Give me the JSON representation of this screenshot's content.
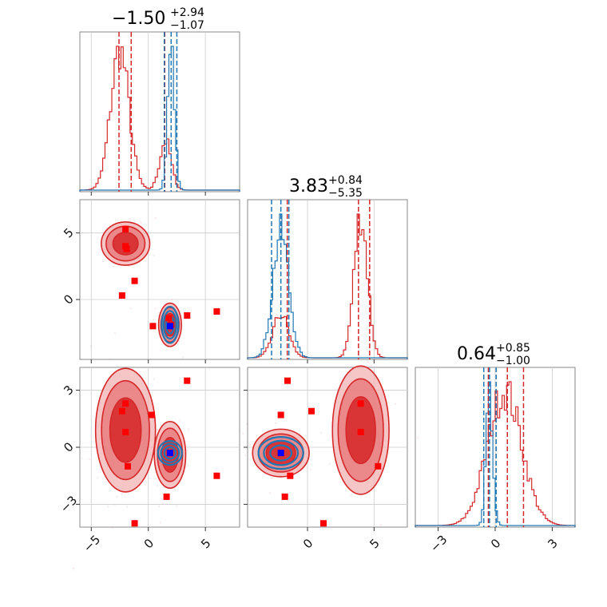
{
  "figure": {
    "description_type": "corner plot",
    "colors": {
      "red": "#d62728",
      "blue": "#1f77b4",
      "red_fill_light": "#f4b6b6",
      "red_fill_mid": "#e8787a",
      "red_fill_dark": "#d62728",
      "grid": "#cccccc",
      "marker_red": "#ff0000",
      "marker_blue": "#0000ff"
    }
  },
  "chart_data": [
    {
      "type": "histogram",
      "panel": "p0-marginal",
      "title_value": "−1.50",
      "title_plus": "+2.94",
      "title_minus": "−1.07",
      "xlim": [
        -6,
        8
      ],
      "xticks": [
        -5,
        0,
        5
      ],
      "series": [
        {
          "color": "red",
          "centers": [
            -2.5,
            1.5
          ],
          "widths": [
            0.8,
            0.5
          ],
          "weights": [
            1.0,
            0.35
          ]
        },
        {
          "color": "blue",
          "centers": [
            2.0
          ],
          "widths": [
            0.3
          ],
          "weights": [
            1.0
          ]
        }
      ],
      "red_quantiles": [
        -2.57,
        -1.5,
        1.44
      ],
      "blue_quantiles": [
        1.4,
        2.0,
        2.5
      ]
    },
    {
      "type": "histogram",
      "panel": "p1-marginal",
      "title_value": "3.83",
      "title_plus": "+0.84",
      "title_minus": "−5.35",
      "xlim": [
        -4.5,
        7.5
      ],
      "series": [
        {
          "color": "red",
          "centers": [
            -2.0,
            4.0
          ],
          "widths": [
            0.6,
            0.5
          ],
          "weights": [
            0.3,
            1.0
          ]
        },
        {
          "color": "blue",
          "centers": [
            -2.0
          ],
          "widths": [
            0.6
          ],
          "weights": [
            1.0
          ]
        }
      ],
      "red_quantiles": [
        -1.52,
        3.83,
        4.67
      ],
      "blue_quantiles": [
        -2.7,
        -2.0,
        -1.4
      ]
    },
    {
      "type": "histogram",
      "panel": "p2-marginal",
      "title_value": "0.64",
      "title_plus": "+0.85",
      "title_minus": "−1.00",
      "xlim": [
        -4.2,
        4.2
      ],
      "xticks": [
        -3,
        0,
        3
      ],
      "series": [
        {
          "color": "red",
          "centers": [
            0.5
          ],
          "widths": [
            0.9
          ],
          "weights": [
            1.0
          ]
        },
        {
          "color": "blue",
          "centers": [
            -0.3
          ],
          "widths": [
            0.18
          ],
          "weights": [
            1.0
          ]
        }
      ],
      "red_quantiles": [
        -0.36,
        0.64,
        1.49
      ],
      "blue_quantiles": [
        -0.6,
        -0.3,
        0.05
      ]
    },
    {
      "type": "scatter-contour",
      "panel": "p1-vs-p0",
      "xlim": [
        -6,
        8
      ],
      "ylim": [
        -4.5,
        7.5
      ],
      "yticks": [
        0,
        5
      ],
      "red_blobs": [
        {
          "x": -2.0,
          "y": 4.2,
          "sx": 1.7,
          "sy": 1.3
        },
        {
          "x": 1.9,
          "y": -1.9,
          "sx": 0.8,
          "sy": 1.3
        }
      ],
      "blue_blobs": [
        {
          "x": 1.9,
          "y": -1.9,
          "sx": 0.7,
          "sy": 1.3
        }
      ],
      "red_points": [
        [
          -2.0,
          5.3
        ],
        [
          -2.0,
          4.0
        ],
        [
          -1.9,
          3.8
        ],
        [
          -1.2,
          1.4
        ],
        [
          -2.3,
          0.3
        ],
        [
          0.4,
          -2.0
        ],
        [
          1.8,
          -1.4
        ],
        [
          2.0,
          -1.9
        ],
        [
          3.4,
          -1.2
        ],
        [
          6.0,
          -0.9
        ]
      ],
      "blue_points": [
        [
          1.9,
          -2.0
        ]
      ]
    },
    {
      "type": "scatter-contour",
      "panel": "p2-vs-p0",
      "xlim": [
        -6,
        8
      ],
      "ylim": [
        -4.2,
        4.2
      ],
      "yticks": [
        -3,
        0,
        3
      ],
      "red_blobs": [
        {
          "x": -2.0,
          "y": 0.9,
          "sx": 2.1,
          "sy": 2.6
        },
        {
          "x": 1.9,
          "y": -0.4,
          "sx": 1.1,
          "sy": 1.4
        }
      ],
      "blue_blobs": [
        {
          "x": 1.9,
          "y": -0.3,
          "sx": 1.0,
          "sy": 0.6
        }
      ],
      "red_points": [
        [
          -2.3,
          1.9
        ],
        [
          -2.0,
          2.3
        ],
        [
          0.3,
          1.7
        ],
        [
          3.4,
          3.5
        ],
        [
          -2.0,
          0.8
        ],
        [
          -1.8,
          -1.0
        ],
        [
          1.6,
          -2.6
        ],
        [
          6.0,
          -1.5
        ],
        [
          -1.2,
          -4.0
        ],
        [
          1.9,
          -0.3
        ]
      ],
      "blue_points": [
        [
          1.9,
          -0.3
        ]
      ]
    },
    {
      "type": "scatter-contour",
      "panel": "p2-vs-p1",
      "xlim": [
        -4.5,
        7.5
      ],
      "xticks": [
        0,
        5
      ],
      "ylim": [
        -4.2,
        4.2
      ],
      "red_blobs": [
        {
          "x": -2.0,
          "y": -0.3,
          "sx": 1.7,
          "sy": 1.0
        },
        {
          "x": 4.0,
          "y": 0.9,
          "sx": 1.7,
          "sy": 2.7
        }
      ],
      "blue_blobs": [
        {
          "x": -2.0,
          "y": -0.3,
          "sx": 1.6,
          "sy": 0.8
        }
      ],
      "red_points": [
        [
          -1.5,
          3.5
        ],
        [
          -2.0,
          1.7
        ],
        [
          0.3,
          1.9
        ],
        [
          4.0,
          2.3
        ],
        [
          4.0,
          0.8
        ],
        [
          5.3,
          -1.0
        ],
        [
          -1.3,
          -1.5
        ],
        [
          -1.7,
          -2.6
        ],
        [
          1.2,
          -4.0
        ],
        [
          -2.0,
          -0.3
        ]
      ],
      "blue_points": [
        [
          -2.0,
          -0.3
        ]
      ]
    }
  ]
}
